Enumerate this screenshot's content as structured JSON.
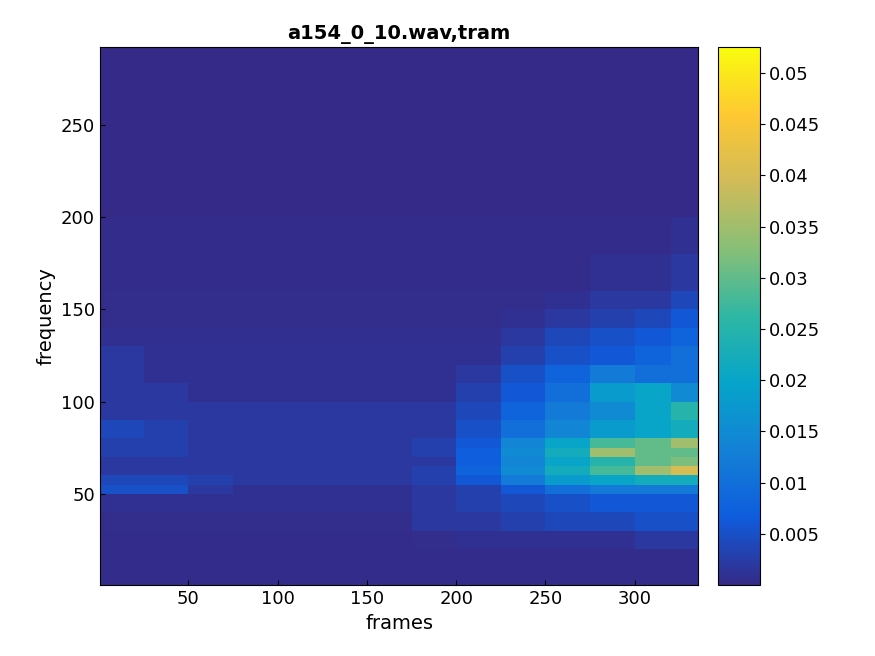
{
  "chart_data": {
    "type": "heatmap",
    "title": "a154_0_10.wav,tram",
    "x_label": "frames",
    "y_label": "frequency",
    "x_edges": [
      0.5,
      25,
      50,
      75,
      100,
      125,
      150,
      175,
      200,
      225,
      250,
      275,
      300,
      320,
      335.5
    ],
    "y_edges": [
      0.5,
      20,
      30,
      40,
      50,
      55,
      60,
      65,
      70,
      75,
      80,
      90,
      100,
      110,
      120,
      130,
      140,
      150,
      160,
      180,
      200,
      250,
      292
    ],
    "cells": [
      [
        0.0003,
        0.0003,
        0.0003,
        0.0003,
        0.0003,
        0.0003,
        0.0003,
        0.0003,
        0.0003,
        0.0003,
        0.0003,
        0.0003,
        0.0003,
        0.0003
      ],
      [
        0.0003,
        0.0003,
        0.0003,
        0.0003,
        0.0003,
        0.0003,
        0.0003,
        0.0005,
        0.001,
        0.001,
        0.001,
        0.001,
        0.002,
        0.002
      ],
      [
        0.0005,
        0.0005,
        0.0005,
        0.0005,
        0.0005,
        0.0005,
        0.0005,
        0.002,
        0.002,
        0.003,
        0.004,
        0.004,
        0.005,
        0.005
      ],
      [
        0.001,
        0.001,
        0.001,
        0.001,
        0.001,
        0.001,
        0.001,
        0.002,
        0.003,
        0.004,
        0.005,
        0.006,
        0.006,
        0.006
      ],
      [
        0.005,
        0.005,
        0.002,
        0.001,
        0.001,
        0.001,
        0.001,
        0.002,
        0.003,
        0.006,
        0.01,
        0.012,
        0.012,
        0.012
      ],
      [
        0.004,
        0.004,
        0.003,
        0.002,
        0.002,
        0.002,
        0.002,
        0.003,
        0.006,
        0.012,
        0.018,
        0.02,
        0.022,
        0.022
      ],
      [
        0.002,
        0.002,
        0.002,
        0.002,
        0.002,
        0.002,
        0.002,
        0.003,
        0.008,
        0.015,
        0.022,
        0.028,
        0.035,
        0.04
      ],
      [
        0.002,
        0.002,
        0.002,
        0.002,
        0.002,
        0.002,
        0.002,
        0.002,
        0.007,
        0.014,
        0.02,
        0.025,
        0.03,
        0.032
      ],
      [
        0.003,
        0.003,
        0.002,
        0.002,
        0.002,
        0.002,
        0.002,
        0.003,
        0.007,
        0.015,
        0.022,
        0.035,
        0.03,
        0.03
      ],
      [
        0.003,
        0.003,
        0.002,
        0.002,
        0.002,
        0.002,
        0.002,
        0.003,
        0.006,
        0.014,
        0.02,
        0.028,
        0.03,
        0.035
      ],
      [
        0.004,
        0.003,
        0.002,
        0.002,
        0.002,
        0.002,
        0.002,
        0.002,
        0.005,
        0.01,
        0.014,
        0.018,
        0.02,
        0.022
      ],
      [
        0.002,
        0.002,
        0.002,
        0.002,
        0.002,
        0.002,
        0.002,
        0.002,
        0.004,
        0.008,
        0.012,
        0.015,
        0.02,
        0.025
      ],
      [
        0.002,
        0.002,
        0.001,
        0.001,
        0.001,
        0.001,
        0.001,
        0.001,
        0.003,
        0.006,
        0.01,
        0.018,
        0.02,
        0.015
      ],
      [
        0.002,
        0.001,
        0.001,
        0.001,
        0.001,
        0.001,
        0.001,
        0.001,
        0.002,
        0.005,
        0.008,
        0.012,
        0.01,
        0.01
      ],
      [
        0.002,
        0.001,
        0.001,
        0.001,
        0.001,
        0.001,
        0.001,
        0.001,
        0.001,
        0.003,
        0.005,
        0.006,
        0.008,
        0.01
      ],
      [
        0.0008,
        0.0008,
        0.0008,
        0.0008,
        0.0008,
        0.0008,
        0.0008,
        0.0008,
        0.0008,
        0.002,
        0.004,
        0.005,
        0.006,
        0.008
      ],
      [
        0.0005,
        0.0005,
        0.0005,
        0.0005,
        0.0005,
        0.0005,
        0.0005,
        0.0005,
        0.0005,
        0.001,
        0.002,
        0.003,
        0.004,
        0.006
      ],
      [
        0.0005,
        0.0005,
        0.0005,
        0.0005,
        0.0005,
        0.0005,
        0.0005,
        0.0005,
        0.0005,
        0.0005,
        0.001,
        0.002,
        0.002,
        0.004
      ],
      [
        0.0003,
        0.0003,
        0.0003,
        0.0003,
        0.0003,
        0.0003,
        0.0003,
        0.0003,
        0.0003,
        0.0003,
        0.0003,
        0.001,
        0.001,
        0.002
      ],
      [
        0.0003,
        0.0003,
        0.0003,
        0.0003,
        0.0003,
        0.0003,
        0.0003,
        0.0003,
        0.0003,
        0.0003,
        0.0003,
        0.0003,
        0.0003,
        0.001
      ],
      [
        0.0002,
        0.0002,
        0.0002,
        0.0002,
        0.0002,
        0.0002,
        0.0002,
        0.0002,
        0.0002,
        0.0002,
        0.0002,
        0.0002,
        0.0002,
        0.0002
      ],
      [
        0.0002,
        0.0002,
        0.0002,
        0.0002,
        0.0002,
        0.0002,
        0.0002,
        0.0002,
        0.0002,
        0.0002,
        0.0002,
        0.0002,
        0.0002,
        0.0002
      ]
    ],
    "xlim": [
      0.5,
      335.5
    ],
    "xticks": [
      50,
      100,
      150,
      200,
      250,
      300
    ],
    "ylim": [
      0.5,
      292
    ],
    "yticks": [
      50,
      100,
      150,
      200,
      250
    ],
    "clim": [
      0,
      0.0525
    ],
    "cticks": [
      0.005,
      0.01,
      0.015,
      0.02,
      0.025,
      0.03,
      0.035,
      0.04,
      0.045,
      0.05
    ]
  }
}
